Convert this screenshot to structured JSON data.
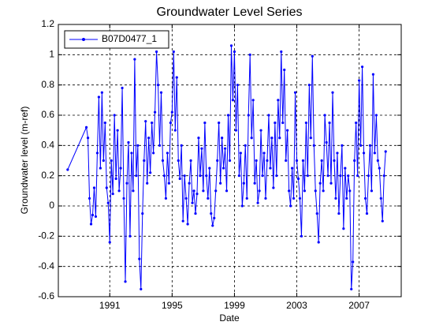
{
  "chart_data": {
    "type": "line",
    "title": "Groundwater Level Series",
    "x_label": "Date",
    "y_label": "Groundwater level (m-ref)",
    "x": [
      1988.3,
      1989.5,
      1989.6,
      1989.7,
      1989.8,
      1989.9,
      1990.0,
      1990.1,
      1990.2,
      1990.3,
      1990.4,
      1990.5,
      1990.6,
      1990.7,
      1990.8,
      1990.9,
      1991.0,
      1991.1,
      1991.2,
      1991.3,
      1991.4,
      1991.5,
      1991.6,
      1991.7,
      1991.8,
      1991.9,
      1992.0,
      1992.1,
      1992.2,
      1992.3,
      1992.4,
      1992.5,
      1992.6,
      1992.7,
      1992.8,
      1992.9,
      1993.0,
      1993.1,
      1993.2,
      1993.3,
      1993.4,
      1993.5,
      1993.6,
      1993.7,
      1993.8,
      1993.9,
      1994.0,
      1994.1,
      1994.2,
      1994.3,
      1994.4,
      1994.5,
      1994.6,
      1994.7,
      1994.8,
      1994.9,
      1995.0,
      1995.1,
      1995.2,
      1995.3,
      1995.4,
      1995.5,
      1995.6,
      1995.7,
      1995.8,
      1995.9,
      1996.0,
      1996.1,
      1996.2,
      1996.3,
      1996.4,
      1996.5,
      1996.6,
      1996.7,
      1996.8,
      1996.9,
      1997.0,
      1997.1,
      1997.2,
      1997.3,
      1997.4,
      1997.5,
      1997.6,
      1997.7,
      1997.8,
      1997.9,
      1998.0,
      1998.1,
      1998.2,
      1998.3,
      1998.4,
      1998.5,
      1998.6,
      1998.7,
      1998.8,
      1998.9,
      1999.0,
      1999.1,
      1999.2,
      1999.3,
      1999.4,
      1999.5,
      1999.6,
      1999.7,
      1999.8,
      1999.9,
      2000.0,
      2000.1,
      2000.2,
      2000.3,
      2000.4,
      2000.5,
      2000.6,
      2000.7,
      2000.8,
      2000.9,
      2001.0,
      2001.1,
      2001.2,
      2001.3,
      2001.4,
      2001.5,
      2001.6,
      2001.7,
      2001.8,
      2001.9,
      2002.0,
      2002.1,
      2002.2,
      2002.3,
      2002.4,
      2002.5,
      2002.6,
      2002.7,
      2002.8,
      2002.9,
      2003.0,
      2003.1,
      2003.2,
      2003.3,
      2003.4,
      2003.5,
      2003.6,
      2003.7,
      2003.8,
      2003.9,
      2004.0,
      2004.1,
      2004.2,
      2004.3,
      2004.4,
      2004.5,
      2004.6,
      2004.7,
      2004.8,
      2004.9,
      2005.0,
      2005.1,
      2005.2,
      2005.3,
      2005.4,
      2005.5,
      2005.6,
      2005.7,
      2005.8,
      2005.9,
      2006.0,
      2006.1,
      2006.2,
      2006.3,
      2006.4,
      2006.5,
      2006.6,
      2006.7,
      2006.8,
      2006.9,
      2007.0,
      2007.1,
      2007.2,
      2007.3,
      2007.4,
      2007.5,
      2007.6,
      2007.7,
      2007.8,
      2007.9,
      2008.0,
      2008.1,
      2008.2,
      2008.3,
      2008.4,
      2008.5,
      2008.6,
      2008.7
    ],
    "series": [
      {
        "name": "B07D0477_1",
        "color": "#0000ff",
        "values": [
          0.24,
          0.52,
          0.45,
          0.05,
          -0.12,
          -0.06,
          0.12,
          -0.07,
          0.35,
          0.72,
          0.25,
          0.75,
          0.3,
          0.55,
          0.12,
          0.02,
          -0.24,
          0.3,
          0.08,
          0.6,
          0.18,
          0.5,
          0.1,
          0.25,
          0.78,
          0.05,
          -0.5,
          0.15,
          0.42,
          -0.2,
          0.35,
          0.1,
          0.97,
          0.2,
          0.4,
          -0.35,
          -0.55,
          -0.05,
          0.3,
          0.56,
          0.15,
          0.45,
          0.22,
          0.55,
          0.35,
          0.62,
          1.02,
          0.8,
          0.4,
          0.75,
          0.3,
          0.2,
          0.05,
          0.35,
          0.15,
          0.55,
          0.62,
          1.02,
          0.5,
          0.85,
          0.3,
          0.18,
          0.4,
          -0.1,
          0.2,
          0.05,
          -0.12,
          0.15,
          0.3,
          0.02,
          0.1,
          -0.05,
          0.08,
          0.45,
          0.2,
          0.38,
          0.1,
          0.55,
          0.2,
          0.05,
          0.25,
          -0.05,
          -0.13,
          -0.08,
          0.1,
          0.3,
          0.55,
          0.15,
          0.45,
          0.25,
          0.38,
          0.1,
          0.6,
          0.3,
          1.06,
          0.7,
          1.02,
          0.5,
          0.8,
          0.2,
          0.35,
          0.0,
          0.15,
          0.4,
          0.05,
          0.6,
          1.0,
          0.45,
          0.7,
          0.15,
          0.3,
          0.02,
          0.1,
          0.5,
          0.2,
          0.35,
          0.05,
          0.3,
          0.6,
          0.25,
          0.45,
          0.12,
          0.55,
          0.2,
          0.7,
          0.45,
          1.02,
          0.55,
          0.9,
          0.3,
          0.5,
          0.1,
          0.0,
          0.25,
          0.05,
          0.75,
          0.3,
          0.18,
          0.05,
          -0.2,
          0.3,
          0.1,
          0.55,
          0.2,
          0.8,
          0.45,
          0.99,
          0.4,
          0.1,
          -0.05,
          -0.24,
          0.15,
          0.3,
          0.1,
          0.6,
          0.42,
          0.2,
          0.55,
          0.15,
          0.75,
          0.3,
          0.05,
          0.35,
          -0.05,
          0.2,
          0.4,
          -0.15,
          0.25,
          0.05,
          0.2,
          0.1,
          -0.55,
          -0.37,
          0.3,
          0.55,
          0.2,
          0.83,
          0.4,
          0.92,
          0.35,
          0.05,
          -0.05,
          0.2,
          0.4,
          0.1,
          0.87,
          0.35,
          0.6,
          0.3,
          0.25,
          0.05,
          -0.1,
          0.2,
          0.36
        ]
      }
    ],
    "xlim": [
      1987.7,
      2009.7
    ],
    "xticks": [
      1991,
      1995,
      1999,
      2003,
      2007
    ],
    "ylim": [
      -0.6,
      1.2
    ],
    "yticks": [
      -0.6,
      -0.4,
      -0.2,
      0,
      0.2,
      0.4,
      0.6,
      0.8,
      1,
      1.2
    ],
    "grid": true,
    "legend": "upper-left"
  }
}
